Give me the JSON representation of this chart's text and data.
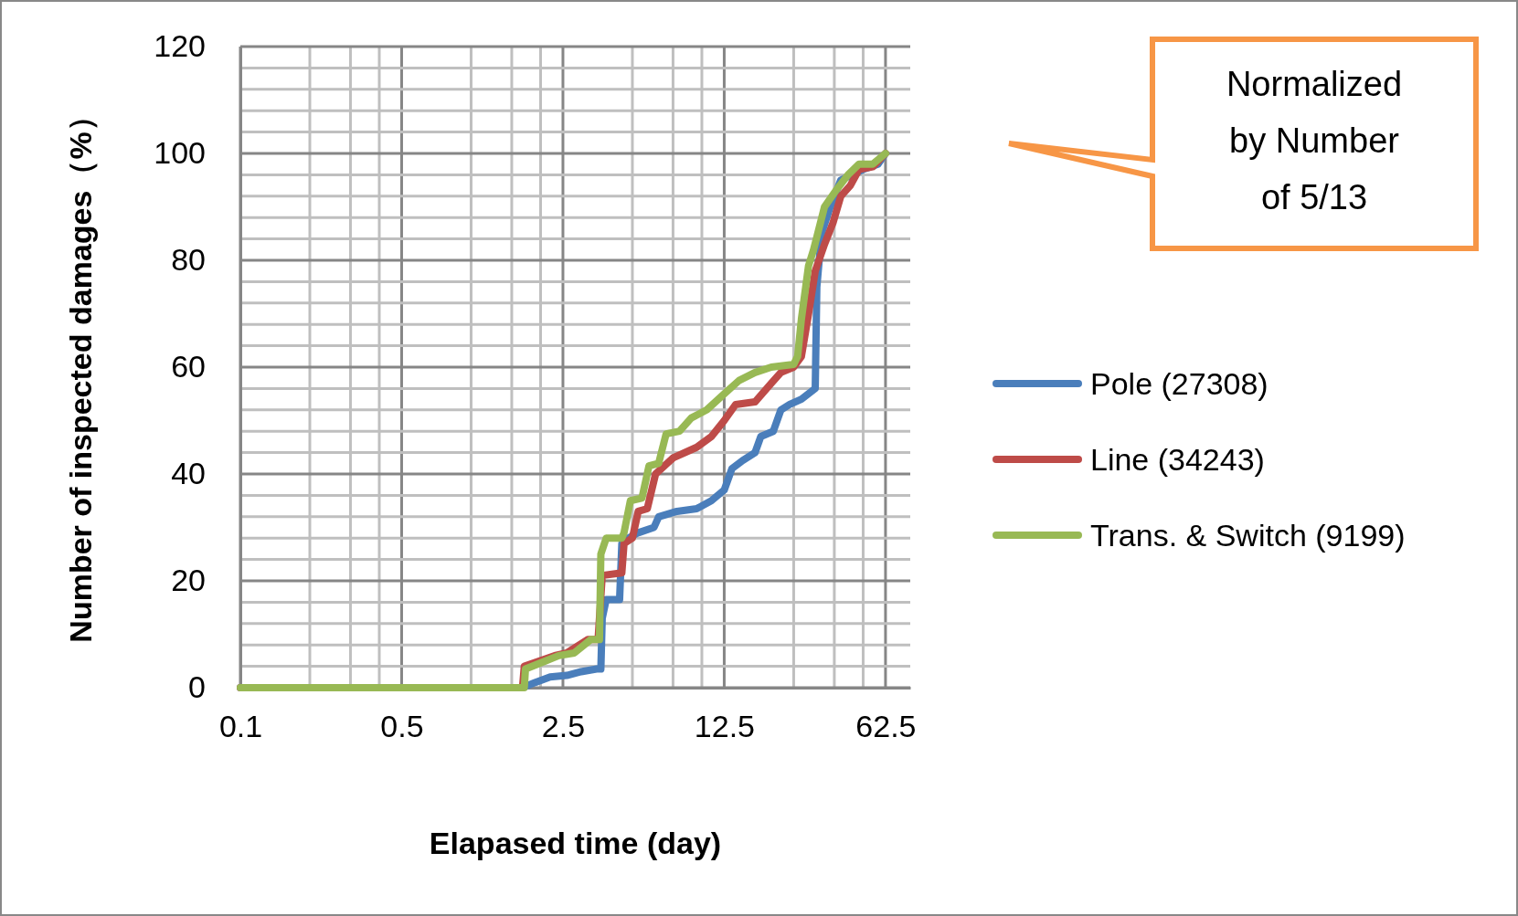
{
  "chart_data": {
    "type": "line",
    "xlabel": "Elapased time (day)",
    "ylabel": "Number of inspected damages（%）",
    "log": "x",
    "grid": true,
    "legend": "right",
    "line_style": "solid",
    "marker": "none",
    "xlim": [
      0.1,
      80
    ],
    "ylim": [
      0,
      120
    ],
    "xticks": [
      0.1,
      {
        "value": 0.2,
        "label": null
      },
      {
        "value": 0.3,
        "label": null
      },
      {
        "value": 0.4,
        "label": null
      },
      0.5,
      {
        "value": 1,
        "label": null
      },
      {
        "value": 1.5,
        "label": null
      },
      {
        "value": 2,
        "label": null
      },
      2.5,
      {
        "value": 5,
        "label": null
      },
      {
        "value": 7.5,
        "label": null
      },
      {
        "value": 10,
        "label": null
      },
      12.5,
      {
        "value": 25,
        "label": null
      },
      {
        "value": 37.5,
        "label": null
      },
      {
        "value": 50,
        "label": null
      },
      62.5
    ],
    "yticks": [
      0,
      {
        "value": 4,
        "label": null
      },
      {
        "value": 8,
        "label": null
      },
      {
        "value": 12,
        "label": null
      },
      {
        "value": 16,
        "label": null
      },
      20,
      {
        "value": 24,
        "label": null
      },
      {
        "value": 28,
        "label": null
      },
      {
        "value": 32,
        "label": null
      },
      {
        "value": 36,
        "label": null
      },
      40,
      {
        "value": 44,
        "label": null
      },
      {
        "value": 48,
        "label": null
      },
      {
        "value": 52,
        "label": null
      },
      {
        "value": 56,
        "label": null
      },
      60,
      {
        "value": 64,
        "label": null
      },
      {
        "value": 68,
        "label": null
      },
      {
        "value": 72,
        "label": null
      },
      {
        "value": 76,
        "label": null
      },
      80,
      {
        "value": 84,
        "label": null
      },
      {
        "value": 88,
        "label": null
      },
      {
        "value": 92,
        "label": null
      },
      {
        "value": 96,
        "label": null
      },
      100,
      {
        "value": 104,
        "label": null
      },
      {
        "value": 108,
        "label": null
      },
      {
        "value": 112,
        "label": null
      },
      {
        "value": 116,
        "label": null
      },
      120
    ],
    "annotations": [
      "Normalized by Number of 5/13"
    ],
    "series": [
      {
        "name": "Pole (27308)",
        "color": "#4a7ebb",
        "x": [
          0.1,
          1.67,
          1.9,
          2.2,
          2.6,
          3.0,
          3.5,
          3.65,
          3.7,
          3.85,
          4.4,
          4.5,
          4.8,
          5.3,
          6.2,
          6.5,
          7.8,
          9.5,
          11,
          12.5,
          13.5,
          15,
          17,
          18,
          20.4,
          22,
          24,
          27,
          31,
          31.5,
          33,
          36,
          40,
          50,
          58,
          62.5
        ],
        "values": [
          0,
          0,
          1,
          2,
          2.3,
          3,
          3.5,
          3.5,
          13,
          16.5,
          16.5,
          27,
          28,
          29,
          30,
          32,
          33,
          33.5,
          35,
          37,
          41,
          42.5,
          44,
          47,
          48,
          52,
          53,
          54,
          56,
          75,
          85,
          90,
          95,
          97,
          98,
          100
        ]
      },
      {
        "name": "Line (34243)",
        "color": "#be4b48",
        "x": [
          0.1,
          1.67,
          1.7,
          2.3,
          2.6,
          3.2,
          3.55,
          3.7,
          4.5,
          4.6,
          5.0,
          5.3,
          5.8,
          6.3,
          7.5,
          9.5,
          11,
          12.5,
          14,
          17,
          20,
          22,
          25,
          27,
          29,
          31,
          34,
          37,
          40,
          44,
          48,
          55,
          62.5
        ],
        "values": [
          0,
          0,
          4,
          6,
          6.5,
          9,
          9,
          21,
          21.5,
          27,
          28,
          33,
          33.5,
          40,
          43,
          45,
          47,
          50,
          53,
          53.5,
          57,
          59,
          60,
          62,
          70,
          78,
          83,
          87,
          92,
          94,
          97,
          97.5,
          100
        ]
      },
      {
        "name": "Trans. & Switch (9199)",
        "color": "#98b954",
        "x": [
          0.1,
          1.7,
          1.72,
          2.1,
          2.4,
          2.8,
          3.3,
          3.6,
          3.65,
          3.85,
          4.5,
          4.6,
          4.9,
          5.5,
          5.9,
          6.5,
          7.0,
          8,
          9,
          10.5,
          12.5,
          14.5,
          17,
          20,
          25,
          26,
          27,
          29,
          30.5,
          34,
          38,
          43,
          48,
          55,
          62.5
        ],
        "values": [
          0,
          0,
          3.5,
          5,
          6,
          6.5,
          9,
          9,
          25,
          28,
          28,
          29,
          35,
          35.5,
          41.5,
          42,
          47.5,
          48,
          50.5,
          52,
          55,
          57.5,
          59,
          60,
          60.5,
          62,
          69,
          79,
          82,
          90,
          93,
          96,
          98,
          98,
          100
        ]
      }
    ]
  }
}
